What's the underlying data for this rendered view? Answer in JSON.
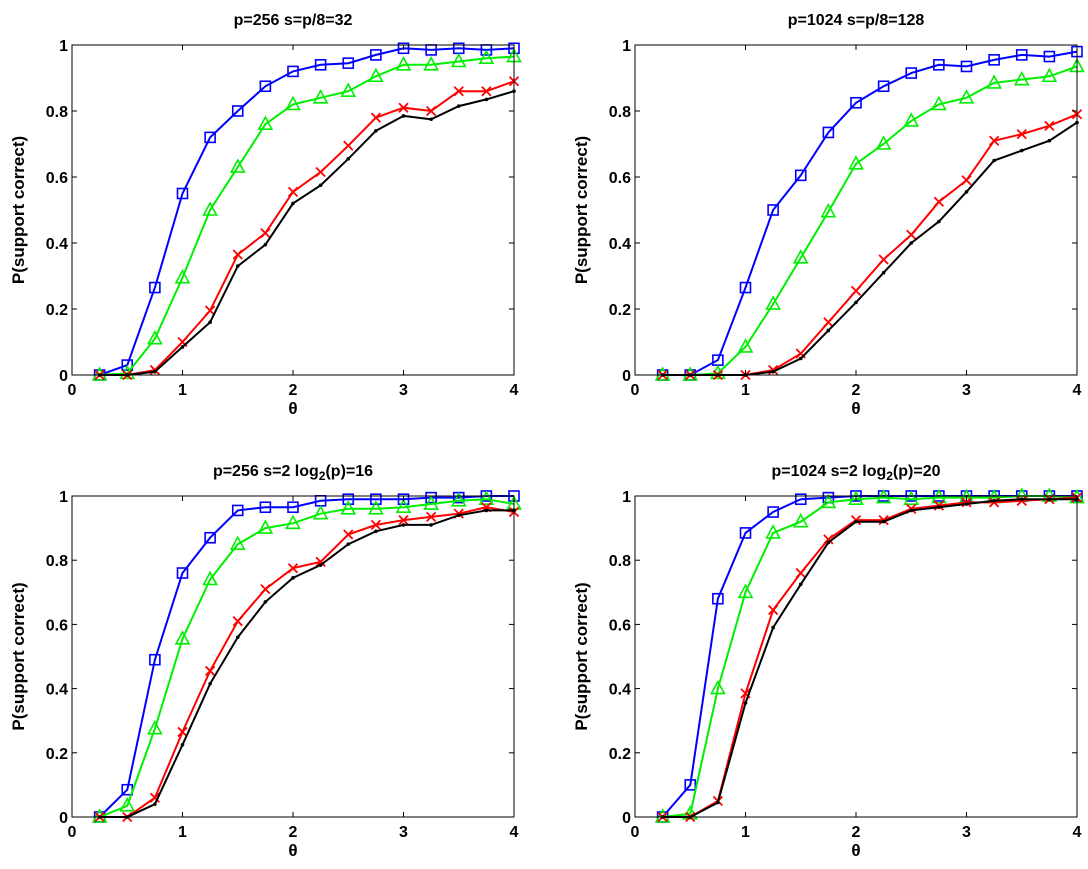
{
  "chart_data": [
    {
      "type": "line",
      "title_parts": [
        "p=256  s=p/8=32"
      ],
      "xlabel": "θ",
      "ylabel": "P(support correct)",
      "xlim": [
        0,
        4
      ],
      "ylim": [
        0,
        1
      ],
      "xticks": [
        "0",
        "1",
        "2",
        "3",
        "4"
      ],
      "yticks": [
        "0",
        "0.2",
        "0.4",
        "0.6",
        "0.8",
        "1"
      ],
      "grid": false,
      "x": [
        0.25,
        0.5,
        0.75,
        1.0,
        1.25,
        1.5,
        1.75,
        2.0,
        2.25,
        2.5,
        2.75,
        3.0,
        3.25,
        3.5,
        3.75,
        4.0
      ],
      "series": [
        {
          "color": "#0000ff",
          "marker": "square",
          "values": [
            0.0,
            0.03,
            0.265,
            0.55,
            0.72,
            0.8,
            0.875,
            0.92,
            0.94,
            0.945,
            0.97,
            0.99,
            0.985,
            0.99,
            0.985,
            0.99
          ]
        },
        {
          "color": "#00ee00",
          "marker": "triangle",
          "values": [
            0.0,
            0.005,
            0.11,
            0.295,
            0.5,
            0.63,
            0.76,
            0.82,
            0.84,
            0.86,
            0.905,
            0.94,
            0.94,
            0.95,
            0.96,
            0.965
          ]
        },
        {
          "color": "#ff0000",
          "marker": "x",
          "values": [
            0.0,
            0.0,
            0.015,
            0.1,
            0.195,
            0.365,
            0.43,
            0.555,
            0.615,
            0.695,
            0.78,
            0.81,
            0.8,
            0.86,
            0.86,
            0.89
          ]
        },
        {
          "color": "#000000",
          "marker": "dot",
          "values": [
            0.0,
            0.0,
            0.01,
            0.085,
            0.16,
            0.33,
            0.395,
            0.52,
            0.575,
            0.655,
            0.74,
            0.785,
            0.775,
            0.815,
            0.835,
            0.86
          ]
        }
      ]
    },
    {
      "type": "line",
      "title_parts": [
        "p=1024  s=p/8=128"
      ],
      "xlabel": "θ",
      "ylabel": "P(support correct)",
      "xlim": [
        0,
        4
      ],
      "ylim": [
        0,
        1
      ],
      "xticks": [
        "0",
        "1",
        "2",
        "3",
        "4"
      ],
      "yticks": [
        "0",
        "0.2",
        "0.4",
        "0.6",
        "0.8",
        "1"
      ],
      "grid": false,
      "x": [
        0.25,
        0.5,
        0.75,
        1.0,
        1.25,
        1.5,
        1.75,
        2.0,
        2.25,
        2.5,
        2.75,
        3.0,
        3.25,
        3.5,
        3.75,
        4.0
      ],
      "series": [
        {
          "color": "#0000ff",
          "marker": "square",
          "values": [
            0.0,
            0.0,
            0.045,
            0.265,
            0.5,
            0.605,
            0.735,
            0.825,
            0.875,
            0.915,
            0.94,
            0.935,
            0.955,
            0.97,
            0.965,
            0.98
          ]
        },
        {
          "color": "#00ee00",
          "marker": "triangle",
          "values": [
            0.0,
            0.0,
            0.005,
            0.085,
            0.215,
            0.355,
            0.495,
            0.64,
            0.7,
            0.77,
            0.82,
            0.84,
            0.885,
            0.895,
            0.905,
            0.935
          ]
        },
        {
          "color": "#ff0000",
          "marker": "x",
          "values": [
            0.0,
            0.0,
            0.0,
            0.0,
            0.015,
            0.065,
            0.16,
            0.255,
            0.35,
            0.425,
            0.525,
            0.59,
            0.71,
            0.73,
            0.755,
            0.79
          ]
        },
        {
          "color": "#000000",
          "marker": "dot",
          "values": [
            0.0,
            0.0,
            0.0,
            0.0,
            0.01,
            0.05,
            0.135,
            0.22,
            0.31,
            0.4,
            0.465,
            0.555,
            0.65,
            0.68,
            0.71,
            0.765
          ]
        }
      ]
    },
    {
      "type": "line",
      "title_parts": [
        "p=256  s=2 log",
        "2",
        "(p)=16"
      ],
      "xlabel": "θ",
      "ylabel": "P(support correct)",
      "xlim": [
        0,
        4
      ],
      "ylim": [
        0,
        1
      ],
      "xticks": [
        "0",
        "1",
        "2",
        "3",
        "4"
      ],
      "yticks": [
        "0",
        "0.2",
        "0.4",
        "0.6",
        "0.8",
        "1"
      ],
      "grid": false,
      "x": [
        0.25,
        0.5,
        0.75,
        1.0,
        1.25,
        1.5,
        1.75,
        2.0,
        2.25,
        2.5,
        2.75,
        3.0,
        3.25,
        3.5,
        3.75,
        4.0
      ],
      "series": [
        {
          "color": "#0000ff",
          "marker": "square",
          "values": [
            0.0,
            0.085,
            0.49,
            0.76,
            0.87,
            0.955,
            0.965,
            0.965,
            0.985,
            0.99,
            0.99,
            0.99,
            0.995,
            0.995,
            1.0,
            1.0
          ]
        },
        {
          "color": "#00ee00",
          "marker": "triangle",
          "values": [
            0.0,
            0.035,
            0.275,
            0.555,
            0.74,
            0.85,
            0.9,
            0.915,
            0.945,
            0.96,
            0.96,
            0.965,
            0.975,
            0.985,
            0.99,
            0.975
          ]
        },
        {
          "color": "#ff0000",
          "marker": "x",
          "values": [
            0.0,
            0.0,
            0.06,
            0.265,
            0.455,
            0.61,
            0.71,
            0.775,
            0.795,
            0.88,
            0.91,
            0.925,
            0.935,
            0.945,
            0.965,
            0.95
          ]
        },
        {
          "color": "#000000",
          "marker": "dot",
          "values": [
            0.0,
            0.0,
            0.04,
            0.225,
            0.415,
            0.56,
            0.67,
            0.745,
            0.785,
            0.85,
            0.89,
            0.91,
            0.91,
            0.94,
            0.955,
            0.955
          ]
        }
      ]
    },
    {
      "type": "line",
      "title_parts": [
        "p=1024  s=2 log",
        "2",
        "(p)=20"
      ],
      "xlabel": "θ",
      "ylabel": "P(support correct)",
      "xlim": [
        0,
        4
      ],
      "ylim": [
        0,
        1
      ],
      "xticks": [
        "0",
        "1",
        "2",
        "3",
        "4"
      ],
      "yticks": [
        "0",
        "0.2",
        "0.4",
        "0.6",
        "0.8",
        "1"
      ],
      "grid": false,
      "x": [
        0.25,
        0.5,
        0.75,
        1.0,
        1.25,
        1.5,
        1.75,
        2.0,
        2.25,
        2.5,
        2.75,
        3.0,
        3.25,
        3.5,
        3.75,
        4.0
      ],
      "series": [
        {
          "color": "#0000ff",
          "marker": "square",
          "values": [
            0.0,
            0.1,
            0.68,
            0.885,
            0.95,
            0.99,
            0.995,
            1.0,
            1.0,
            1.0,
            1.0,
            1.0,
            1.0,
            1.0,
            1.0,
            1.0
          ]
        },
        {
          "color": "#00ee00",
          "marker": "triangle",
          "values": [
            0.0,
            0.01,
            0.4,
            0.7,
            0.885,
            0.92,
            0.98,
            0.99,
            0.995,
            0.99,
            0.995,
            0.995,
            0.995,
            1.0,
            1.0,
            0.995
          ]
        },
        {
          "color": "#ff0000",
          "marker": "x",
          "values": [
            0.0,
            0.0,
            0.05,
            0.385,
            0.645,
            0.76,
            0.865,
            0.925,
            0.925,
            0.96,
            0.97,
            0.98,
            0.98,
            0.985,
            0.99,
            0.995
          ]
        },
        {
          "color": "#000000",
          "marker": "dot",
          "values": [
            0.0,
            0.0,
            0.045,
            0.355,
            0.59,
            0.725,
            0.855,
            0.92,
            0.92,
            0.955,
            0.965,
            0.975,
            0.985,
            0.99,
            0.99,
            0.99
          ]
        }
      ]
    }
  ]
}
